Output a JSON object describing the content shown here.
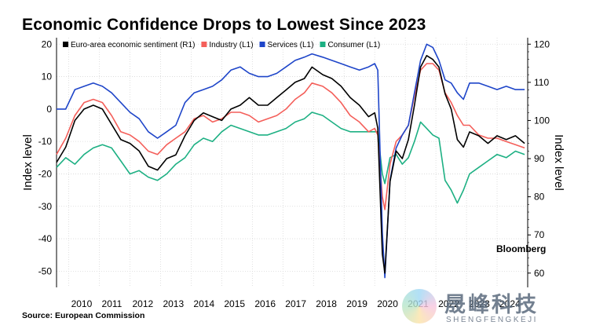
{
  "title": "Economic Confidence Drops to Lowest Since 2023",
  "source": "Source: European Commission",
  "watermark": {
    "brand": "Bloomberg",
    "cn": "晟峰科技",
    "en": "SHENGFENGKEJI"
  },
  "chart_data": {
    "type": "line",
    "title": "Economic Confidence Drops to Lowest Since 2023",
    "ylabel_left": "Index level",
    "ylabel_right": "Index level",
    "left_axis": {
      "min": -55,
      "max": 22,
      "ticks": [
        20,
        10,
        0,
        -10,
        -20,
        -30,
        -40,
        -50
      ],
      "tick_labels": [
        "20",
        "10",
        "0",
        "-10",
        "-20",
        "-30",
        "-40",
        "-50"
      ]
    },
    "right_axis": {
      "min": 56.25,
      "max": 121.7,
      "ticks": [
        120,
        110,
        100,
        90,
        80,
        70,
        60
      ],
      "tick_labels": [
        "120",
        "110",
        "100",
        "90",
        "80",
        "70",
        "60"
      ]
    },
    "x_range": [
      2009.6,
      2025.0
    ],
    "x_ticks": [
      2010,
      2011,
      2012,
      2013,
      2014,
      2015,
      2016,
      2017,
      2018,
      2019,
      2020,
      2021,
      2022,
      2023,
      2024
    ],
    "x_tick_labels": [
      "2010",
      "2011",
      "2012",
      "2013",
      "2014",
      "2015",
      "2016",
      "2017",
      "2018",
      "2019",
      "2020",
      "2021",
      "2022",
      "2023",
      "2024"
    ],
    "legend": {
      "position": "top-left",
      "entries": [
        "Euro-area economic sentiment (R1)",
        "Industry (L1)",
        "Services (L1)",
        "Consumer (L1)"
      ]
    },
    "series": [
      {
        "name": "Euro-area economic sentiment (R1)",
        "axis": "right",
        "color": "#000000",
        "x": [
          2009.6,
          2009.9,
          2010.2,
          2010.5,
          2010.8,
          2011.1,
          2011.4,
          2011.7,
          2012.0,
          2012.3,
          2012.6,
          2012.9,
          2013.2,
          2013.5,
          2013.8,
          2014.1,
          2014.4,
          2014.7,
          2015.0,
          2015.3,
          2015.6,
          2015.9,
          2016.2,
          2016.5,
          2016.8,
          2017.1,
          2017.4,
          2017.7,
          2017.95,
          2018.3,
          2018.6,
          2018.9,
          2019.2,
          2019.5,
          2019.8,
          2020.0,
          2020.1,
          2020.25,
          2020.33,
          2020.5,
          2020.7,
          2020.9,
          2021.1,
          2021.3,
          2021.5,
          2021.7,
          2021.9,
          2022.1,
          2022.3,
          2022.5,
          2022.7,
          2022.9,
          2023.1,
          2023.4,
          2023.7,
          2024.0,
          2024.3,
          2024.6,
          2024.9
        ],
        "values": [
          89,
          93,
          100,
          103,
          104,
          103,
          99,
          95,
          94,
          92,
          88,
          87,
          90,
          91,
          96,
          100,
          102,
          101,
          100,
          103,
          104,
          106,
          104,
          104,
          106,
          108,
          110,
          111,
          114,
          112,
          111,
          109,
          106,
          104,
          101,
          102,
          98,
          65,
          60,
          84,
          92,
          90,
          95,
          104,
          114,
          117,
          116,
          114,
          107,
          103,
          95,
          93,
          97,
          96,
          94,
          96,
          95,
          96,
          94
        ]
      },
      {
        "name": "Industry (L1)",
        "axis": "left",
        "color": "#f45f5a",
        "x": [
          2009.6,
          2009.9,
          2010.2,
          2010.5,
          2010.8,
          2011.1,
          2011.4,
          2011.7,
          2012.0,
          2012.3,
          2012.6,
          2012.9,
          2013.2,
          2013.5,
          2013.8,
          2014.1,
          2014.4,
          2014.7,
          2015.0,
          2015.3,
          2015.6,
          2015.9,
          2016.2,
          2016.5,
          2016.8,
          2017.1,
          2017.4,
          2017.7,
          2017.95,
          2018.3,
          2018.6,
          2018.9,
          2019.2,
          2019.5,
          2019.8,
          2020.0,
          2020.1,
          2020.25,
          2020.33,
          2020.5,
          2020.7,
          2020.9,
          2021.1,
          2021.3,
          2021.5,
          2021.7,
          2021.9,
          2022.1,
          2022.3,
          2022.5,
          2022.7,
          2022.9,
          2023.1,
          2023.4,
          2023.7,
          2024.0,
          2024.3,
          2024.6,
          2024.9
        ],
        "values": [
          -14,
          -9,
          -2,
          2,
          3,
          2,
          -2,
          -7,
          -8,
          -10,
          -13,
          -14,
          -11,
          -9,
          -7,
          -3,
          -2,
          -4,
          -3,
          -1,
          -1,
          -2,
          -4,
          -3,
          -2,
          0,
          3,
          5,
          8,
          7,
          5,
          2,
          -2,
          -4,
          -7,
          -6,
          -8,
          -27,
          -31,
          -17,
          -10,
          -8,
          -5,
          4,
          12,
          14,
          14,
          12,
          5,
          2,
          -2,
          -5,
          -5,
          -8,
          -9,
          -9,
          -10,
          -11,
          -12
        ]
      },
      {
        "name": "Services (L1)",
        "axis": "left",
        "color": "#1e45c9",
        "x": [
          2009.6,
          2009.9,
          2010.2,
          2010.5,
          2010.8,
          2011.1,
          2011.4,
          2011.7,
          2012.0,
          2012.3,
          2012.6,
          2012.9,
          2013.2,
          2013.5,
          2013.8,
          2014.1,
          2014.4,
          2014.7,
          2015.0,
          2015.3,
          2015.6,
          2015.9,
          2016.2,
          2016.5,
          2016.8,
          2017.1,
          2017.4,
          2017.7,
          2017.95,
          2018.3,
          2018.6,
          2018.9,
          2019.2,
          2019.5,
          2019.8,
          2020.0,
          2020.1,
          2020.25,
          2020.33,
          2020.5,
          2020.7,
          2020.9,
          2021.1,
          2021.3,
          2021.5,
          2021.7,
          2021.9,
          2022.1,
          2022.3,
          2022.5,
          2022.7,
          2022.9,
          2023.1,
          2023.4,
          2023.7,
          2024.0,
          2024.3,
          2024.6,
          2024.9
        ],
        "values": [
          0,
          0,
          6,
          7,
          8,
          7,
          5,
          2,
          -1,
          -3,
          -7,
          -9,
          -7,
          -5,
          2,
          5,
          6,
          7,
          9,
          12,
          13,
          11,
          10,
          10,
          11,
          13,
          15,
          16,
          17,
          16,
          15,
          14,
          13,
          12,
          13,
          14,
          12,
          -38,
          -52,
          -22,
          -12,
          -8,
          -5,
          5,
          15,
          20,
          19,
          15,
          9,
          8,
          5,
          3,
          8,
          8,
          7,
          6,
          7,
          6,
          6
        ]
      },
      {
        "name": "Consumer (L1)",
        "axis": "left",
        "color": "#1db083",
        "x": [
          2009.6,
          2009.9,
          2010.2,
          2010.5,
          2010.8,
          2011.1,
          2011.4,
          2011.7,
          2012.0,
          2012.3,
          2012.6,
          2012.9,
          2013.2,
          2013.5,
          2013.8,
          2014.1,
          2014.4,
          2014.7,
          2015.0,
          2015.3,
          2015.6,
          2015.9,
          2016.2,
          2016.5,
          2016.8,
          2017.1,
          2017.4,
          2017.7,
          2017.95,
          2018.3,
          2018.6,
          2018.9,
          2019.2,
          2019.5,
          2019.8,
          2020.0,
          2020.1,
          2020.25,
          2020.33,
          2020.5,
          2020.7,
          2020.9,
          2021.1,
          2021.3,
          2021.5,
          2021.7,
          2021.9,
          2022.1,
          2022.3,
          2022.5,
          2022.7,
          2022.9,
          2023.1,
          2023.4,
          2023.7,
          2024.0,
          2024.3,
          2024.6,
          2024.9
        ],
        "values": [
          -18,
          -15,
          -17,
          -14,
          -12,
          -11,
          -12,
          -16,
          -20,
          -19,
          -21,
          -22,
          -20,
          -17,
          -15,
          -11,
          -9,
          -10,
          -7,
          -5,
          -6,
          -7,
          -8,
          -8,
          -7,
          -6,
          -4,
          -3,
          -1,
          -2,
          -4,
          -6,
          -7,
          -7,
          -7,
          -7,
          -7,
          -20,
          -23,
          -15,
          -14,
          -17,
          -15,
          -10,
          -4,
          -6,
          -8,
          -9,
          -22,
          -25,
          -29,
          -25,
          -20,
          -18,
          -16,
          -14,
          -15,
          -13,
          -14
        ]
      }
    ]
  }
}
